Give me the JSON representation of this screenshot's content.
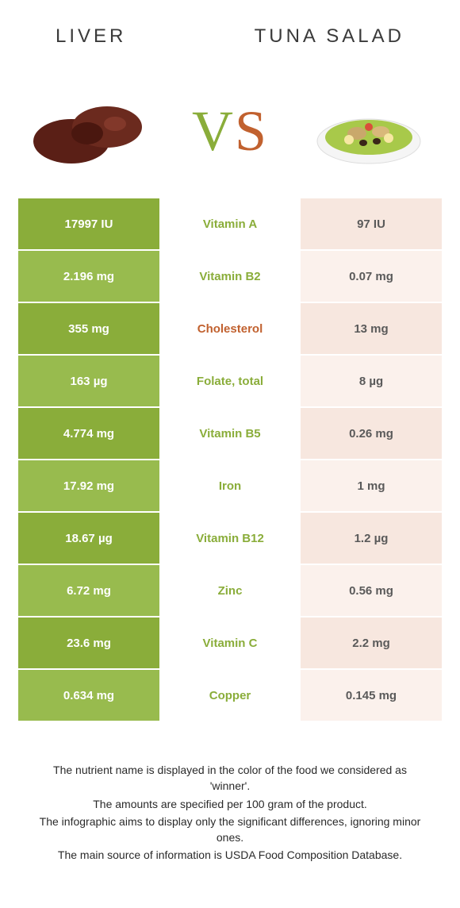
{
  "header": {
    "left_title": "LIVER",
    "right_title": "TUNA SALAD",
    "vs_v": "V",
    "vs_s": "S"
  },
  "colors": {
    "left_dark": "#8aad3a",
    "left_light": "#98bb4e",
    "right_dark": "#f7e7df",
    "right_light": "#fbf1ec",
    "nutrient_left_winner": "#8aad3a",
    "nutrient_right_winner": "#c1612f",
    "text_dark": "#3a3a3a"
  },
  "rows": [
    {
      "left": "17997 IU",
      "nutrient": "Vitamin A",
      "right": "97 IU",
      "winner": "left"
    },
    {
      "left": "2.196 mg",
      "nutrient": "Vitamin B2",
      "right": "0.07 mg",
      "winner": "left"
    },
    {
      "left": "355 mg",
      "nutrient": "Cholesterol",
      "right": "13 mg",
      "winner": "right"
    },
    {
      "left": "163 µg",
      "nutrient": "Folate, total",
      "right": "8 µg",
      "winner": "left"
    },
    {
      "left": "4.774 mg",
      "nutrient": "Vitamin B5",
      "right": "0.26 mg",
      "winner": "left"
    },
    {
      "left": "17.92 mg",
      "nutrient": "Iron",
      "right": "1 mg",
      "winner": "left"
    },
    {
      "left": "18.67 µg",
      "nutrient": "Vitamin B12",
      "right": "1.2 µg",
      "winner": "left"
    },
    {
      "left": "6.72 mg",
      "nutrient": "Zinc",
      "right": "0.56 mg",
      "winner": "left"
    },
    {
      "left": "23.6 mg",
      "nutrient": "Vitamin C",
      "right": "2.2 mg",
      "winner": "left"
    },
    {
      "left": "0.634 mg",
      "nutrient": "Copper",
      "right": "0.145 mg",
      "winner": "left"
    }
  ],
  "footer": {
    "line1": "The nutrient name is displayed in the color of the food we considered as 'winner'.",
    "line2": "The amounts are specified per 100 gram of the product.",
    "line3": "The infographic aims to display only the significant differences, ignoring minor ones.",
    "line4": "The main source of information is USDA Food Composition Database."
  }
}
